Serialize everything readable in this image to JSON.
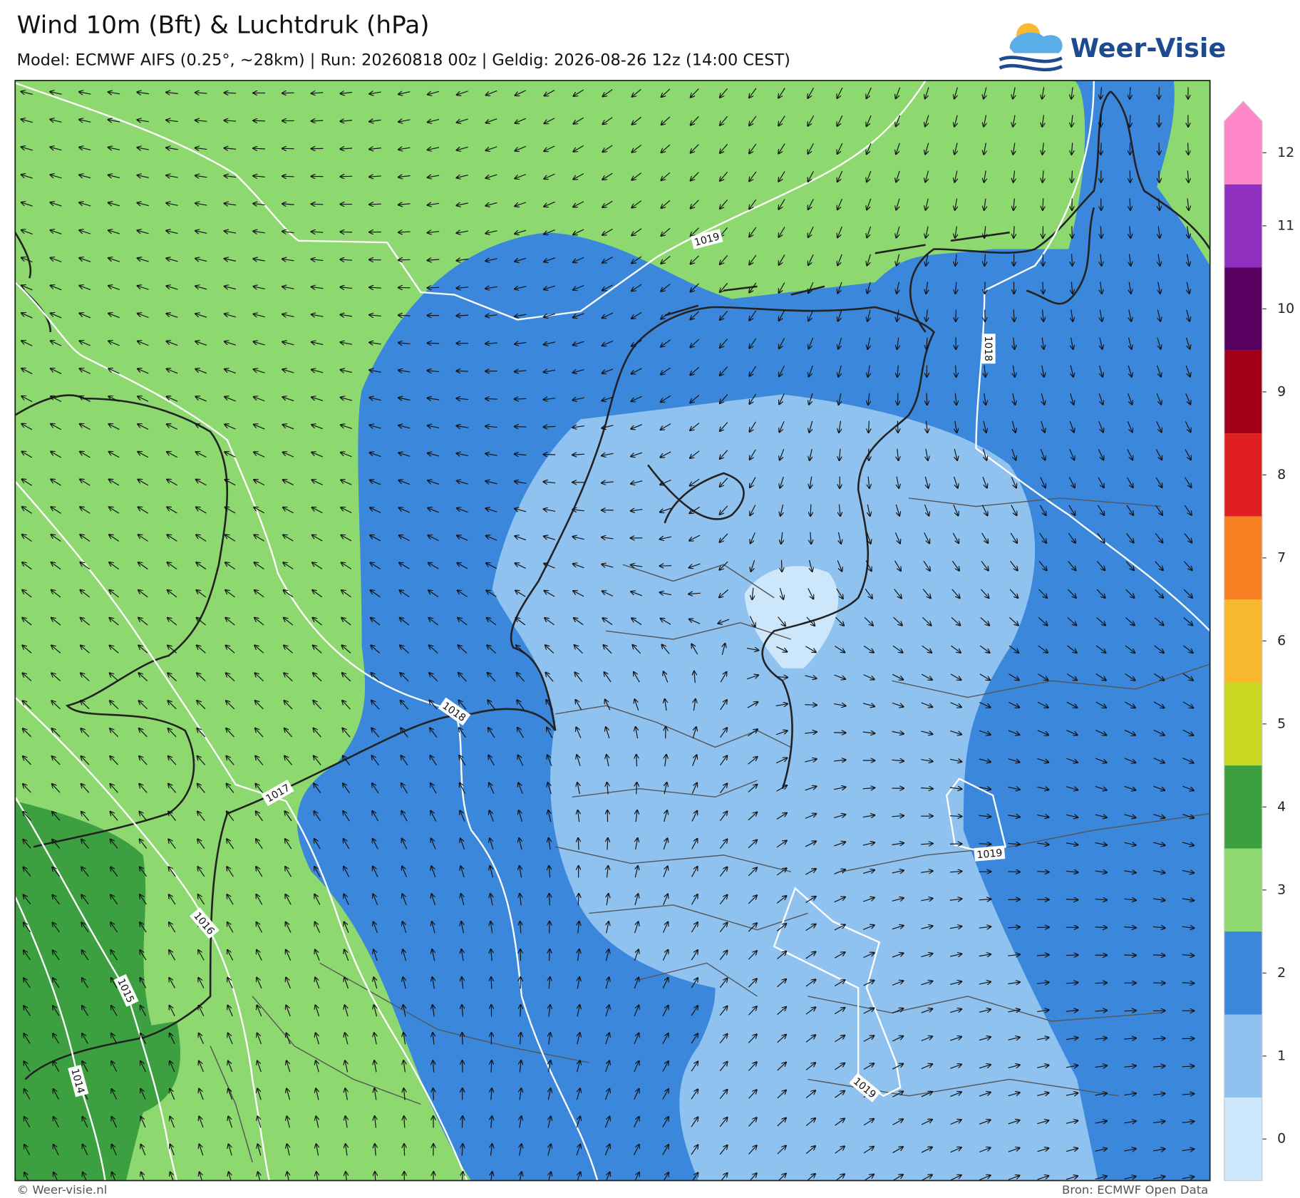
{
  "header": {
    "title": "Wind 10m (Bft) & Luchtdruk (hPa)",
    "subtitle": "Model: ECMWF AIFS (0.25°, ~28km)  |  Run: 20260818 00z  |  Geldig: 2026-08-26 12z (14:00 CEST)",
    "logo": "Weer-Visie"
  },
  "map": {
    "contour_labels": [
      "1019",
      "1018",
      "1018",
      "1017",
      "1016",
      "1015",
      "1014",
      "1019",
      "1019"
    ]
  },
  "colorbar": {
    "ticks": [
      0,
      1,
      2,
      3,
      4,
      5,
      6,
      7,
      8,
      9,
      10,
      11,
      12
    ],
    "colors": [
      "#cce6fb",
      "#90c2f0",
      "#3a87dc",
      "#8ed870",
      "#3ca040",
      "#c8d820",
      "#f8b830",
      "#f88020",
      "#e02020",
      "#a00018",
      "#580060",
      "#9030c0",
      "#ff88c8"
    ]
  },
  "footer": {
    "left": "© Weer-visie.nl",
    "right": "Bron: ECMWF Open Data"
  }
}
